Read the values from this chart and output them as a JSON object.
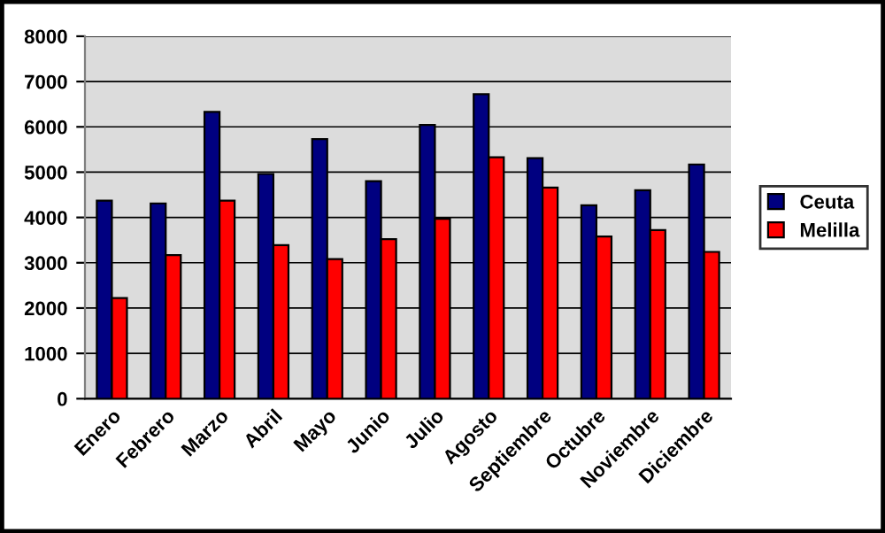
{
  "chart_data": {
    "type": "bar",
    "categories": [
      "Enero",
      "Febrero",
      "Marzo",
      "Abril",
      "Mayo",
      "Junio",
      "Julio",
      "Agosto",
      "Septiembre",
      "Octubre",
      "Noviembre",
      "Diciembre"
    ],
    "series": [
      {
        "name": "Ceuta",
        "color": "#000080",
        "values": [
          4370,
          4310,
          6330,
          4960,
          5730,
          4800,
          6040,
          6720,
          5310,
          4270,
          4600,
          5170
        ]
      },
      {
        "name": "Melilla",
        "color": "#ff0000",
        "values": [
          2220,
          3170,
          4370,
          3390,
          3080,
          3520,
          3970,
          5330,
          4660,
          3580,
          3720,
          3240
        ]
      }
    ],
    "ylim": [
      0,
      8000
    ],
    "yticks": [
      0,
      1000,
      2000,
      3000,
      4000,
      5000,
      6000,
      7000,
      8000
    ],
    "grid": "y",
    "legend": "right"
  }
}
